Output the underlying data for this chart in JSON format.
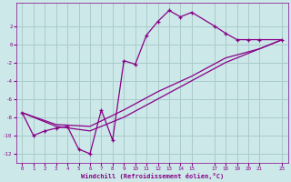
{
  "xlabel": "Windchill (Refroidissement éolien,°C)",
  "background_color": "#cce8e8",
  "grid_color": "#aacccc",
  "line_color": "#880088",
  "xlim": [
    -0.5,
    23.5
  ],
  "ylim": [
    -13,
    4.5
  ],
  "xtick_positions": [
    0,
    1,
    2,
    3,
    4,
    5,
    6,
    7,
    8,
    9,
    10,
    11,
    12,
    13,
    14,
    15,
    17,
    18,
    19,
    20,
    21,
    23
  ],
  "xtick_labels": [
    "0",
    "1",
    "2",
    "3",
    "4",
    "5",
    "6",
    "7",
    "8",
    "9",
    "10",
    "11",
    "12",
    "13",
    "14",
    "15",
    "17",
    "18",
    "19",
    "20",
    "21",
    "23"
  ],
  "ytick_positions": [
    2,
    0,
    -2,
    -4,
    -6,
    -8,
    -10,
    -12
  ],
  "ytick_labels": [
    "2",
    "0",
    "-2",
    "-4",
    "-6",
    "-8",
    "-10",
    "-12"
  ],
  "series1_x": [
    0,
    1,
    2,
    3,
    4,
    5,
    6,
    7,
    8,
    9,
    10,
    11,
    12,
    13,
    14,
    15,
    17,
    18,
    19,
    20,
    21,
    23
  ],
  "series1_y": [
    -7.5,
    -10,
    -9.5,
    -9.2,
    -9.0,
    -11.5,
    -12,
    -7.2,
    -10.5,
    -1.8,
    -2.2,
    1.0,
    2.5,
    3.7,
    3.0,
    3.5,
    2.0,
    1.2,
    0.5,
    0.5,
    0.5,
    0.5
  ],
  "series2_x": [
    0,
    23
  ],
  "series2_y": [
    -7.5,
    0.5
  ],
  "series3_x": [
    0,
    23
  ],
  "series3_y": [
    -7.5,
    0.5
  ],
  "series2_control_x": [
    0,
    3,
    6,
    9,
    12,
    15,
    18,
    21,
    23
  ],
  "series2_control_y": [
    -7.5,
    -8.8,
    -9.0,
    -7.2,
    -5.2,
    -3.5,
    -1.5,
    -0.5,
    0.5
  ],
  "series3_control_x": [
    0,
    3,
    6,
    9,
    12,
    15,
    18,
    21,
    23
  ],
  "series3_control_y": [
    -7.5,
    -9.0,
    -9.5,
    -8.0,
    -6.0,
    -4.0,
    -2.0,
    -0.5,
    0.5
  ]
}
